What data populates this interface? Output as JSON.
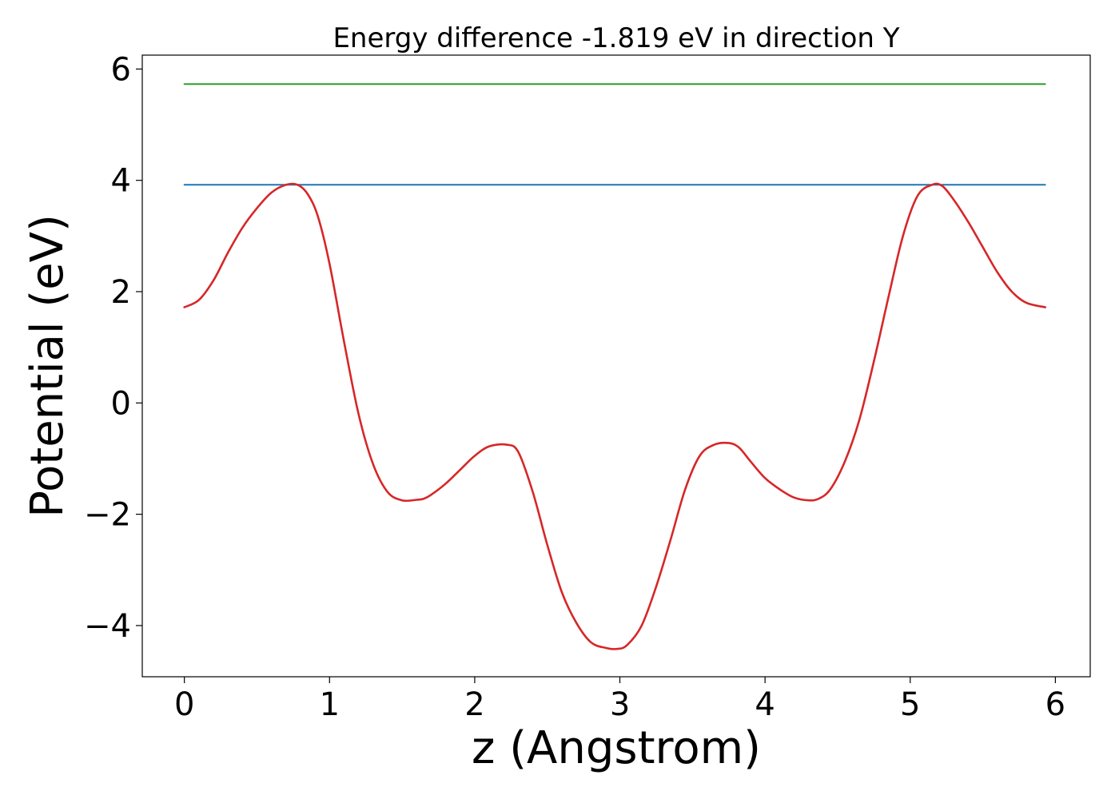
{
  "chart_data": {
    "type": "line",
    "title": "Energy difference -1.819 eV in direction Y",
    "xlabel": "z (Angstrom)",
    "ylabel": "Potential (eV)",
    "xlim": [
      -0.29,
      6.24
    ],
    "ylim": [
      -4.92,
      6.25
    ],
    "xticks": [
      0,
      1,
      2,
      3,
      4,
      5,
      6
    ],
    "yticks": [
      -4,
      -2,
      0,
      2,
      4,
      6
    ],
    "xtick_labels": [
      "0",
      "1",
      "2",
      "3",
      "4",
      "5",
      "6"
    ],
    "ytick_labels": [
      "−4",
      "−2",
      "0",
      "2",
      "4",
      "6"
    ],
    "grid": false,
    "legend": "none",
    "series": [
      {
        "color": "#d62728",
        "style": "curve",
        "x": [
          0.0,
          0.1,
          0.2,
          0.3,
          0.4,
          0.5,
          0.6,
          0.7,
          0.78,
          0.85,
          0.92,
          1.0,
          1.1,
          1.2,
          1.3,
          1.4,
          1.5,
          1.6,
          1.65,
          1.7,
          1.8,
          1.9,
          2.0,
          2.1,
          2.22,
          2.3,
          2.4,
          2.5,
          2.6,
          2.7,
          2.8,
          2.9,
          2.98,
          3.05,
          3.15,
          3.25,
          3.35,
          3.45,
          3.55,
          3.65,
          3.75,
          3.82,
          3.9,
          4.0,
          4.1,
          4.2,
          4.3,
          4.37,
          4.45,
          4.55,
          4.65,
          4.75,
          4.85,
          4.95,
          5.05,
          5.15,
          5.22,
          5.3,
          5.4,
          5.5,
          5.6,
          5.7,
          5.8,
          5.93
        ],
        "y": [
          1.72,
          1.85,
          2.2,
          2.7,
          3.15,
          3.5,
          3.78,
          3.92,
          3.92,
          3.75,
          3.35,
          2.5,
          1.1,
          -0.2,
          -1.1,
          -1.6,
          -1.75,
          -1.74,
          -1.72,
          -1.65,
          -1.45,
          -1.2,
          -0.95,
          -0.78,
          -0.75,
          -0.88,
          -1.6,
          -2.55,
          -3.4,
          -3.95,
          -4.3,
          -4.4,
          -4.42,
          -4.35,
          -4.0,
          -3.3,
          -2.45,
          -1.55,
          -0.95,
          -0.75,
          -0.72,
          -0.8,
          -1.05,
          -1.35,
          -1.55,
          -1.7,
          -1.75,
          -1.72,
          -1.55,
          -1.05,
          -0.3,
          0.75,
          1.9,
          3.0,
          3.72,
          3.92,
          3.9,
          3.65,
          3.25,
          2.8,
          2.35,
          2.0,
          1.8,
          1.72
        ]
      },
      {
        "color": "#1f77b4",
        "style": "hline",
        "x": [
          0.0,
          5.93
        ],
        "y": [
          3.92,
          3.92
        ]
      },
      {
        "color": "#2ca02c",
        "style": "hline",
        "x": [
          0.0,
          5.93
        ],
        "y": [
          5.73,
          5.73
        ]
      }
    ]
  }
}
